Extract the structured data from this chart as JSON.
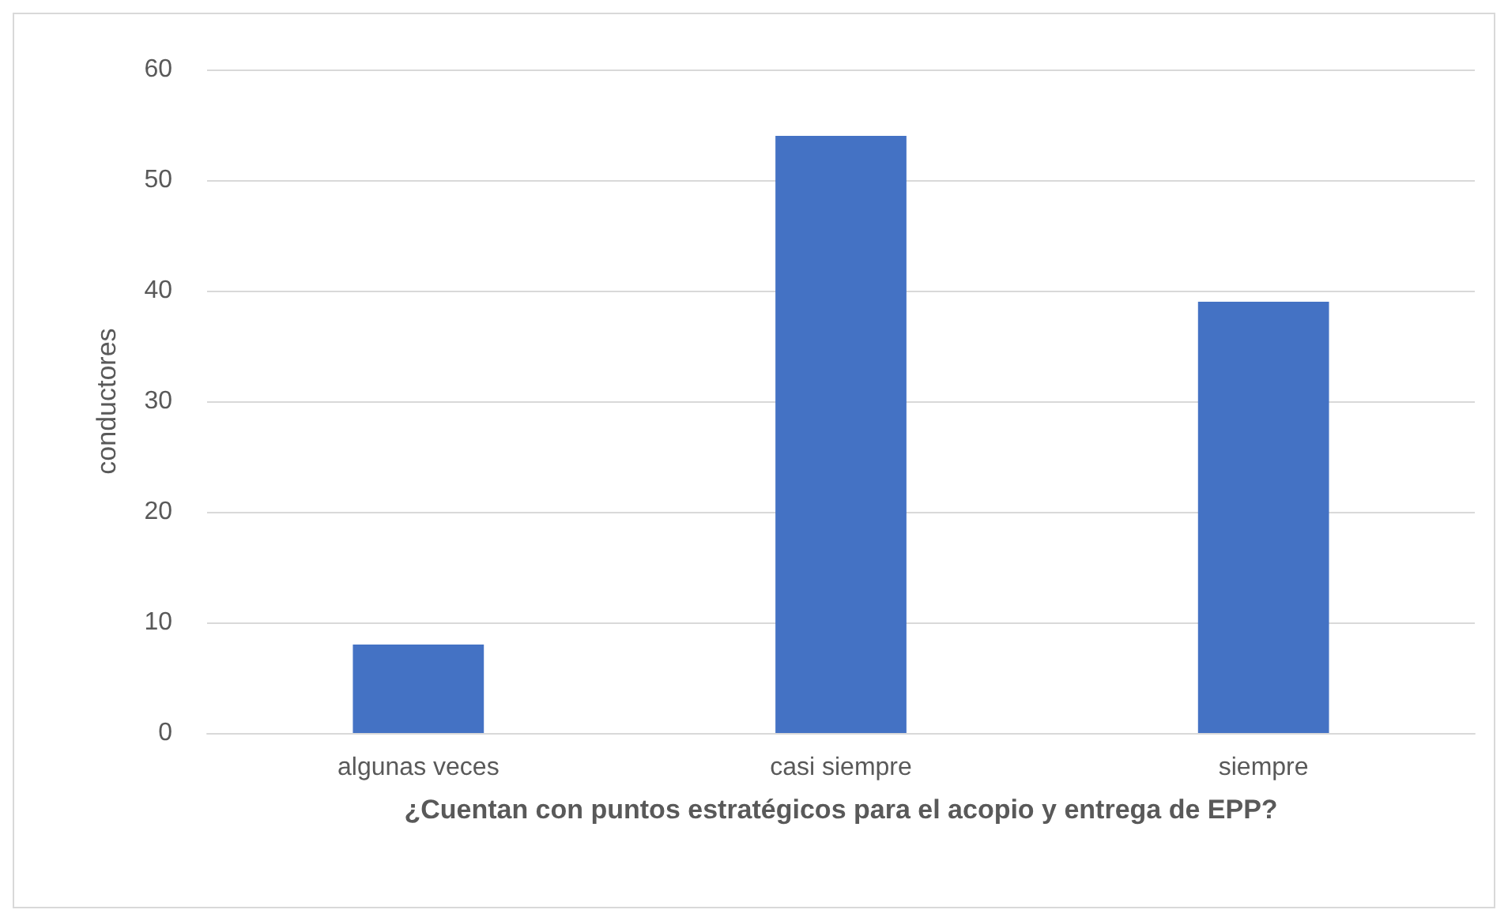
{
  "chart_data": {
    "type": "bar",
    "xlabel": "¿Cuentan con puntos estratégicos para el acopio y entrega de EPP?",
    "ylabel": "conductores",
    "categories": [
      "algunas veces",
      "casi siempre",
      "siempre"
    ],
    "values": [
      8,
      54,
      39
    ],
    "color": "#4472c4",
    "ylim": [
      0,
      60
    ],
    "yticks": [
      0,
      10,
      20,
      30,
      40,
      50,
      60
    ],
    "grid": "y"
  }
}
